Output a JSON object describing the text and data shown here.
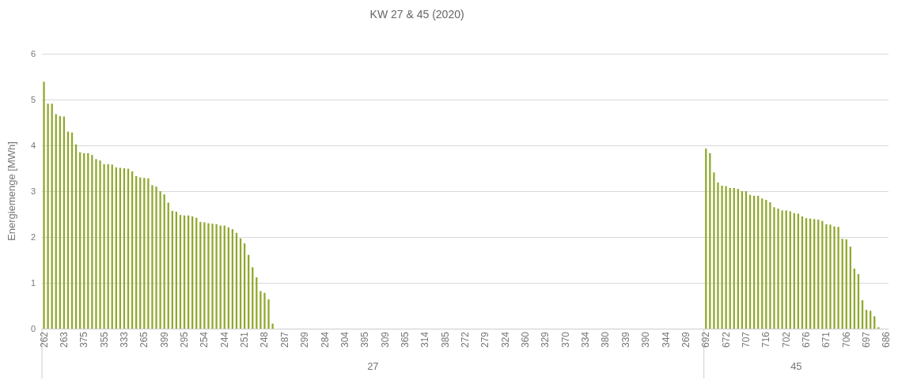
{
  "chart_data": {
    "type": "bar",
    "title": "KW 27 & 45 (2020)",
    "ylabel": "Energiemenge [MWh]",
    "categories": [
      "262",
      null,
      null,
      null,
      null,
      "263",
      null,
      null,
      null,
      null,
      "375",
      null,
      null,
      null,
      null,
      "355",
      null,
      null,
      null,
      null,
      "333",
      null,
      null,
      null,
      null,
      "265",
      null,
      null,
      null,
      null,
      "399",
      null,
      null,
      null,
      null,
      "295",
      null,
      null,
      null,
      null,
      "254",
      null,
      null,
      null,
      null,
      "244",
      null,
      null,
      null,
      null,
      "251",
      null,
      null,
      null,
      null,
      "248",
      null,
      null,
      null,
      null,
      "287",
      null,
      null,
      null,
      null,
      "299",
      null,
      null,
      null,
      null,
      "284",
      null,
      null,
      null,
      null,
      "304",
      null,
      null,
      null,
      null,
      "395",
      null,
      null,
      null,
      null,
      "309",
      null,
      null,
      null,
      null,
      "365",
      null,
      null,
      null,
      null,
      "314",
      null,
      null,
      null,
      null,
      "385",
      null,
      null,
      null,
      null,
      "272",
      null,
      null,
      null,
      null,
      "279",
      null,
      null,
      null,
      null,
      "324",
      null,
      null,
      null,
      null,
      "360",
      null,
      null,
      null,
      null,
      "329",
      null,
      null,
      null,
      null,
      "370",
      null,
      null,
      null,
      null,
      "334",
      null,
      null,
      null,
      null,
      "380",
      null,
      null,
      null,
      null,
      "339",
      null,
      null,
      null,
      null,
      "390",
      null,
      null,
      null,
      null,
      "344",
      null,
      null,
      null,
      null,
      "269",
      null,
      null,
      null,
      null,
      "692",
      null,
      null,
      null,
      null,
      "672",
      null,
      null,
      null,
      null,
      "707",
      null,
      null,
      null,
      null,
      "716",
      null,
      null,
      null,
      null,
      "702",
      null,
      null,
      null,
      null,
      "676",
      null,
      null,
      null,
      null,
      "671",
      null,
      null,
      null,
      null,
      "706",
      null,
      null,
      null,
      null,
      "697",
      null,
      null,
      null,
      null,
      "686"
    ],
    "series": [
      {
        "color": "#8fa82c",
        "values": [
          5.39,
          4.91,
          4.91,
          4.68,
          4.64,
          4.63,
          4.3,
          4.28,
          4.02,
          3.85,
          3.83,
          3.83,
          3.79,
          3.7,
          3.67,
          3.59,
          3.59,
          3.58,
          3.52,
          3.51,
          3.5,
          3.49,
          3.43,
          3.33,
          3.3,
          3.29,
          3.28,
          3.13,
          3.1,
          3.0,
          2.93,
          2.75,
          2.57,
          2.55,
          2.48,
          2.47,
          2.47,
          2.45,
          2.42,
          2.33,
          2.32,
          2.3,
          2.29,
          2.28,
          2.25,
          2.25,
          2.21,
          2.17,
          2.09,
          1.97,
          1.86,
          1.61,
          1.34,
          1.12,
          0.82,
          0.78,
          0.64,
          0.11,
          null,
          null,
          null,
          null,
          null,
          null,
          null,
          null,
          null,
          null,
          null,
          null,
          null,
          null,
          null,
          null,
          null,
          null,
          null,
          null,
          null,
          null,
          null,
          null,
          null,
          null,
          null,
          null,
          null,
          null,
          null,
          null,
          null,
          null,
          null,
          null,
          null,
          null,
          null,
          null,
          null,
          null,
          null,
          null,
          null,
          null,
          null,
          null,
          null,
          null,
          null,
          null,
          null,
          null,
          null,
          null,
          null,
          null,
          null,
          null,
          null,
          null,
          null,
          null,
          null,
          null,
          null,
          null,
          null,
          null,
          null,
          null,
          null,
          null,
          null,
          null,
          null,
          null,
          null,
          null,
          null,
          null,
          null,
          null,
          null,
          null,
          null,
          null,
          null,
          null,
          null,
          null,
          null,
          null,
          null,
          null,
          null,
          null,
          null,
          null,
          null,
          null,
          null,
          null,
          null,
          null,
          null,
          3.93,
          3.83,
          3.41,
          3.19,
          3.12,
          3.11,
          3.07,
          3.07,
          3.05,
          3.0,
          3.0,
          2.92,
          2.9,
          2.9,
          2.84,
          2.81,
          2.76,
          2.65,
          2.62,
          2.58,
          2.58,
          2.56,
          2.52,
          2.51,
          2.45,
          2.41,
          2.4,
          2.39,
          2.38,
          2.35,
          2.28,
          2.27,
          2.23,
          2.22,
          1.96,
          1.95,
          1.79,
          1.31,
          1.19,
          0.62,
          0.41,
          0.39,
          0.27,
          0.03,
          null,
          null
        ]
      }
    ],
    "ylim": [
      0,
      6
    ],
    "yticks": [
      0,
      1,
      2,
      3,
      4,
      5,
      6
    ],
    "grid": "y",
    "annotations": [
      "27",
      "45"
    ]
  }
}
